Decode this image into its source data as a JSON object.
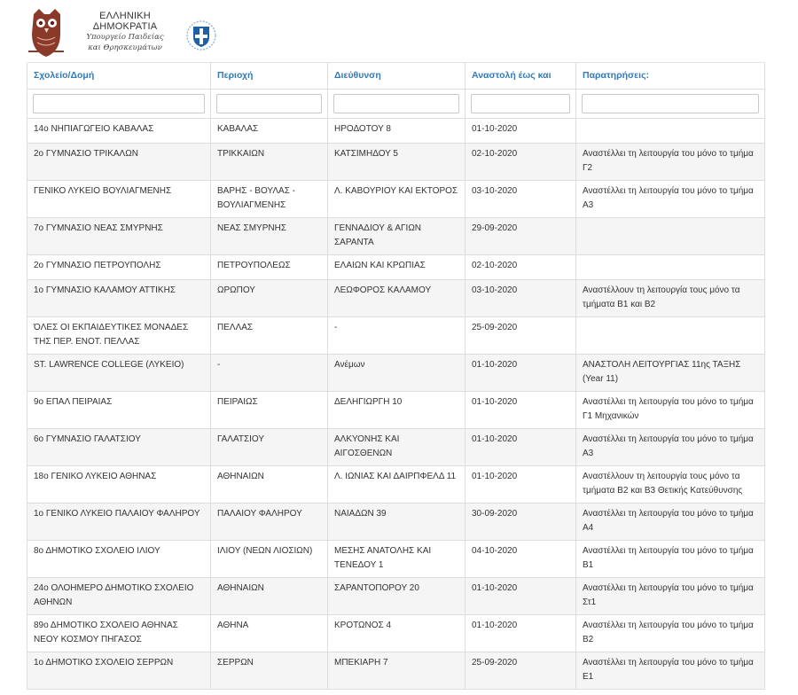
{
  "header": {
    "title": "ΕΛΛΗΝΙΚΗ ΔΗΜΟΚΡΑΤΙΑ",
    "subtitle_line1": "Υπουργείο Παιδείας",
    "subtitle_line2": "και Θρησκευμάτων",
    "colors": {
      "logo": "#8b3a2a",
      "emblem": "#1f5fa8"
    }
  },
  "table": {
    "columns": [
      "Σχολείο/Δομή",
      "Περιοχή",
      "Διεύθυνση",
      "Αναστολή έως και",
      "Παρατηρήσεις:"
    ],
    "rows": [
      {
        "school": "14ο ΝΗΠΙΑΓΩΓΕΙΟ ΚΑΒΑΛΑΣ",
        "area": "ΚΑΒΑΛΑΣ",
        "address": "ΗΡΟΔΟΤΟΥ 8",
        "until": "01-10-2020",
        "notes": ""
      },
      {
        "school": "2ο ΓΥΜΝΑΣΙΟ ΤΡΙΚΑΛΩΝ",
        "area": "ΤΡΙΚΚΑΙΩΝ",
        "address": "ΚΑΤΣΙΜΗΔΟΥ 5",
        "until": "02-10-2020",
        "notes": "Αναστέλλει τη λειτουργία του μόνο το τμήμα Γ2"
      },
      {
        "school": "ΓΕΝΙΚΟ ΛΥΚΕΙΟ ΒΟΥΛΙΑΓΜΕΝΗΣ",
        "area": "ΒΑΡΗΣ - ΒΟΥΛΑΣ - ΒΟΥΛΙΑΓΜΕΝΗΣ",
        "address": "Λ. ΚΑΒΟΥΡΙΟΥ ΚΑΙ ΕΚΤΟΡΟΣ",
        "until": "03-10-2020",
        "notes": "Αναστέλλει τη λειτουργία του μόνο το τμήμα Α3"
      },
      {
        "school": "7ο ΓΥΜΝΑΣΙΟ ΝΕΑΣ ΣΜΥΡΝΗΣ",
        "area": "ΝΕΑΣ ΣΜΥΡΝΗΣ",
        "address": "ΓΕΝΝΑΔΙΟΥ & ΑΓΙΩΝ ΣΑΡΑΝΤΑ",
        "until": "29-09-2020",
        "notes": ""
      },
      {
        "school": "2ο ΓΥΜΝΑΣΙΟ ΠΕΤΡΟΥΠΟΛΗΣ",
        "area": "ΠΕΤΡΟΥΠΟΛΕΩΣ",
        "address": "ΕΛΑΙΩΝ ΚΑΙ ΚΡΩΠΙΑΣ",
        "until": "02-10-2020",
        "notes": ""
      },
      {
        "school": "1ο ΓΥΜΝΑΣΙΟ ΚΑΛΑΜΟΥ ΑΤΤΙΚΗΣ",
        "area": "ΩΡΩΠΟΥ",
        "address": "ΛΕΩΦΟΡΟΣ ΚΑΛΑΜΟΥ",
        "until": "03-10-2020",
        "notes": "Αναστέλλουν τη λειτουργία τους μόνο τα τμήματα Β1 και Β2"
      },
      {
        "school": "ΌΛΕΣ ΟΙ ΕΚΠΑΙΔΕΥΤΙΚΕΣ ΜΟΝΑΔΕΣ ΤΗΣ ΠΕΡ. ΕΝΟΤ. ΠΕΛΛΑΣ",
        "area": "ΠΕΛΛΑΣ",
        "address": "-",
        "until": "25-09-2020",
        "notes": ""
      },
      {
        "school": "ST. LAWRENCE COLLEGE (ΛΥΚΕΙΟ)",
        "area": "-",
        "address": "Ανέμων",
        "until": "01-10-2020",
        "notes": "ΑΝΑΣΤΟΛΗ ΛΕΙΤΟΥΡΓΙΑΣ 11ης ΤΑΞΗΣ (Year 11)"
      },
      {
        "school": "9ο ΕΠΑΛ ΠΕΙΡΑΙΑΣ",
        "area": "ΠΕΙΡΑΙΩΣ",
        "address": "ΔΕΛΗΓΙΩΡΓΗ 10",
        "until": "01-10-2020",
        "notes": "Αναστέλλει τη λειτουργία του μόνο το τμήμα Γ1 Μηχανικών"
      },
      {
        "school": "6ο ΓΥΜΝΑΣΙΟ ΓΑΛΑΤΣΙΟΥ",
        "area": "ΓΑΛΑΤΣΙΟΥ",
        "address": "ΑΛΚΥΟΝΗΣ ΚΑΙ ΑΙΓΟΣΘΕΝΩΝ",
        "until": "01-10-2020",
        "notes": "Αναστέλλει τη λειτουργία του μόνο το τμήμα Α3"
      },
      {
        "school": "18ο ΓΕΝΙΚΟ ΛΥΚΕΙΟ ΑΘΗΝΑΣ",
        "area": "ΑΘΗΝΑΙΩΝ",
        "address": "Λ. ΙΩΝΙΑΣ ΚΑΙ ΔΑΙΡΠΦΕΛΔ 11",
        "until": "01-10-2020",
        "notes": "Αναστέλλουν τη λειτουργία τους μόνο τα τμήματα Β2 και Β3 Θετικής Κατεύθυνσης"
      },
      {
        "school": "1ο ΓΕΝΙΚΟ ΛΥΚΕΙΟ ΠΑΛΑΙΟΥ ΦΑΛΗΡΟΥ",
        "area": "ΠΑΛΑΙΟΥ ΦΑΛΗΡΟΥ",
        "address": "ΝΑΙΑΔΩΝ 39",
        "until": "30-09-2020",
        "notes": "Αναστέλλει τη λειτουργία του μόνο το τμήμα Α4"
      },
      {
        "school": "8ο ΔΗΜΟΤΙΚΟ ΣΧΟΛΕΙΟ ΙΛΙΟΥ",
        "area": "ΙΛΙΟΥ (ΝΕΩΝ ΛΙΟΣΙΩΝ)",
        "address": "ΜΕΣΗΣ ΑΝΑΤΟΛΗΣ ΚΑΙ ΤΕΝΕΔΟΥ 1",
        "until": "04-10-2020",
        "notes": "Αναστέλλει τη λειτουργία του μόνο το τμήμα Β1"
      },
      {
        "school": "24ο ΟΛΟΗΜΕΡΟ ΔΗΜΟΤΙΚΟ ΣΧΟΛΕΙΟ ΑΘΗΝΩΝ",
        "area": "ΑΘΗΝΑΙΩΝ",
        "address": "ΣΑΡΑΝΤΟΠΟΡΟΥ 20",
        "until": "01-10-2020",
        "notes": "Αναστέλλει τη λειτουργία του μόνο το τμήμα Στ1"
      },
      {
        "school": "89ο ΔΗΜΟΤΙΚΟ ΣΧΟΛΕΙΟ ΑΘΗΝΑΣ ΝΕΟΥ ΚΟΣΜΟΥ ΠΗΓΑΣΟΣ",
        "area": "ΑΘΗΝΑ",
        "address": "ΚΡΟΤΩΝΟΣ 4",
        "until": "01-10-2020",
        "notes": "Αναστέλλει τη λειτουργία του μόνο το τμήμα Β2"
      },
      {
        "school": "1ο ΔΗΜΟΤΙΚΟ ΣΧΟΛΕΙΟ ΣΕΡΡΩΝ",
        "area": "ΣΕΡΡΩΝ",
        "address": "ΜΠΕΚΙΑΡΗ 7",
        "until": "25-09-2020",
        "notes": "Αναστέλλει τη λειτουργία του μόνο το τμήμα Ε1"
      }
    ]
  }
}
